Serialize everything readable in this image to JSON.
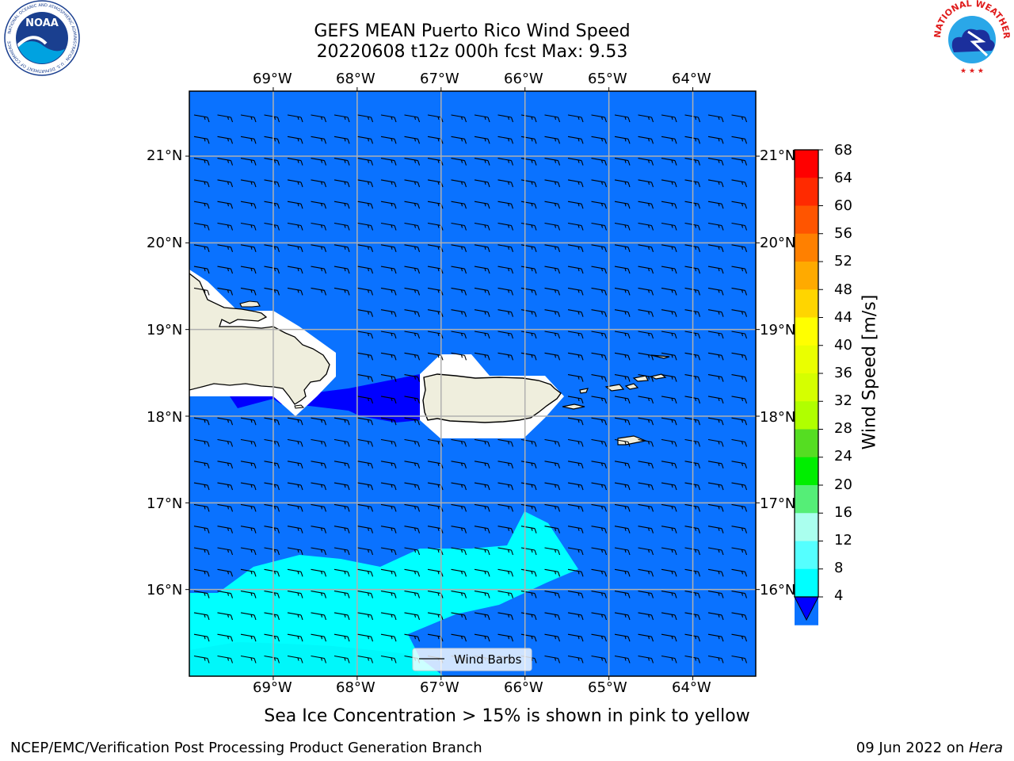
{
  "title": {
    "line1": "GEFS MEAN Puerto Rico Wind Speed",
    "line2": "20220608 t12z 000h fcst   Max: 9.53"
  },
  "map": {
    "lon_labels": [
      "69°W",
      "68°W",
      "67°W",
      "66°W",
      "65°W",
      "64°W"
    ],
    "lat_labels": [
      "21°N",
      "20°N",
      "19°N",
      "18°N",
      "17°N",
      "16°N"
    ],
    "lon_range": [
      -70.0,
      -63.25
    ],
    "lat_range": [
      15.0,
      21.75
    ],
    "ocean_color": "#0a72ff",
    "land_color": "#efeedd",
    "legend_label": "Wind Barbs"
  },
  "colorbar": {
    "label": "Wind Speed [m/s]",
    "ticks": [
      "68",
      "64",
      "60",
      "56",
      "52",
      "48",
      "44",
      "40",
      "36",
      "32",
      "28",
      "24",
      "20",
      "16",
      "12",
      "8",
      "4"
    ],
    "colors": [
      "#ff0000",
      "#ff2a00",
      "#ff5500",
      "#ff8000",
      "#ffaa00",
      "#ffd500",
      "#ffff00",
      "#eaff00",
      "#d5ff00",
      "#b0ff00",
      "#55dd22",
      "#00ee00",
      "#55ee77",
      "#aaffee",
      "#55ffff",
      "#00ffff",
      "#0a72ff"
    ],
    "under_color": "#0000ff"
  },
  "note": "Sea Ice Concentration > 15% is shown in pink to yellow",
  "footer": {
    "left": "NCEP/EMC/Verification Post Processing Product Generation Branch",
    "date": "09 Jun 2022 on ",
    "host": "Hera"
  },
  "logos": {
    "noaa": {
      "text": "NOAA",
      "ring": "NATIONAL OCEANIC AND ATMOSPHERIC ADMINISTRATION · U.S. DEPARTMENT OF COMMERCE"
    },
    "nws": {
      "ring": "NATIONAL WEATHER SERVICE"
    }
  }
}
